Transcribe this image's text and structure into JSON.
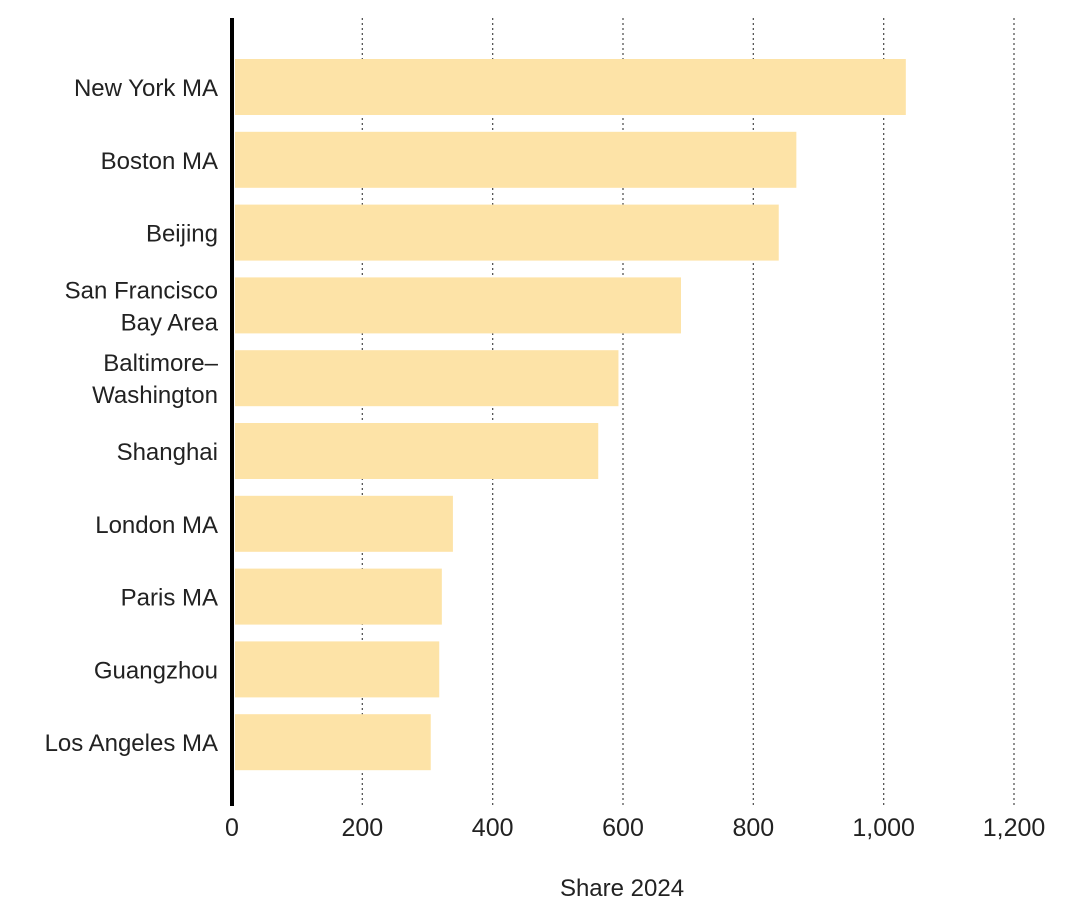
{
  "chart_data": {
    "type": "bar",
    "orientation": "horizontal",
    "categories": [
      [
        "New York MA"
      ],
      [
        "Boston MA"
      ],
      [
        "Beijing"
      ],
      [
        "San Francisco",
        "Bay Area"
      ],
      [
        "Baltimore–",
        "Washington"
      ],
      [
        "Shanghai"
      ],
      [
        "London MA"
      ],
      [
        "Paris MA"
      ],
      [
        "Guangzhou"
      ],
      [
        "Los Angeles MA"
      ]
    ],
    "values": [
      1034,
      866,
      839,
      689,
      593,
      562,
      339,
      322,
      318,
      305
    ],
    "xlabel": "Share 2024",
    "xlim": [
      0,
      1200
    ],
    "xticks": [
      0,
      200,
      400,
      600,
      800,
      1000,
      1200
    ],
    "xtick_labels": [
      "0",
      "200",
      "400",
      "600",
      "800",
      "1,000",
      "1,200"
    ],
    "grid": "vertical dotted",
    "bar_color": "#fde3a7",
    "axis_color": "#000000",
    "grid_color": "#555555"
  }
}
